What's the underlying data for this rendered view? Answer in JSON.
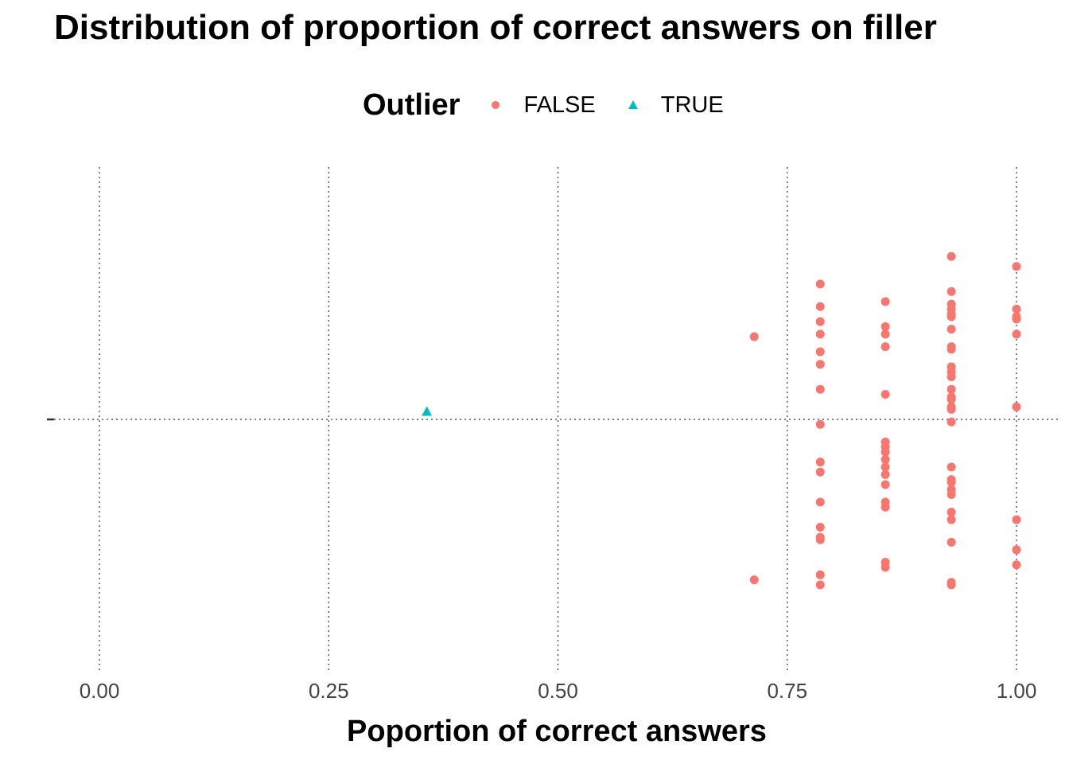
{
  "chart_data": {
    "type": "scatter",
    "title": "Distribution of proportion of correct answers on filler",
    "xlabel": "Poportion of correct answers",
    "ylabel": "",
    "xlim": [
      -0.05,
      1.05
    ],
    "x_ticks": [
      "0.00",
      "0.25",
      "0.50",
      "0.75",
      "1.00"
    ],
    "x_tick_values": [
      0,
      0.25,
      0.5,
      0.75,
      1.0
    ],
    "grid": "dotted",
    "legend": {
      "title": "Outlier",
      "placement": "top",
      "entries": [
        {
          "label": "FALSE",
          "shape": "circle",
          "color": "#F8766D"
        },
        {
          "label": "TRUE",
          "shape": "triangle",
          "color": "#00BFC4"
        }
      ]
    },
    "jitter_range": [
      -1,
      1
    ],
    "series": [
      {
        "name": "FALSE",
        "color": "#F8766D",
        "shape": "circle",
        "points": [
          {
            "x": 0.714,
            "y": 0.33
          },
          {
            "x": 0.714,
            "y": -0.64
          },
          {
            "x": 0.786,
            "y": 0.54
          },
          {
            "x": 0.786,
            "y": 0.45
          },
          {
            "x": 0.786,
            "y": 0.39
          },
          {
            "x": 0.786,
            "y": 0.34
          },
          {
            "x": 0.786,
            "y": 0.27
          },
          {
            "x": 0.786,
            "y": 0.22
          },
          {
            "x": 0.786,
            "y": 0.12
          },
          {
            "x": 0.786,
            "y": -0.02
          },
          {
            "x": 0.786,
            "y": -0.17
          },
          {
            "x": 0.786,
            "y": -0.21
          },
          {
            "x": 0.786,
            "y": -0.33
          },
          {
            "x": 0.786,
            "y": -0.43
          },
          {
            "x": 0.786,
            "y": -0.47
          },
          {
            "x": 0.786,
            "y": -0.48
          },
          {
            "x": 0.786,
            "y": -0.62
          },
          {
            "x": 0.786,
            "y": -0.66
          },
          {
            "x": 0.857,
            "y": 0.47
          },
          {
            "x": 0.857,
            "y": 0.37
          },
          {
            "x": 0.857,
            "y": 0.34
          },
          {
            "x": 0.857,
            "y": 0.29
          },
          {
            "x": 0.857,
            "y": 0.1
          },
          {
            "x": 0.857,
            "y": -0.09
          },
          {
            "x": 0.857,
            "y": -0.11
          },
          {
            "x": 0.857,
            "y": -0.13
          },
          {
            "x": 0.857,
            "y": -0.16
          },
          {
            "x": 0.857,
            "y": -0.19
          },
          {
            "x": 0.857,
            "y": -0.22
          },
          {
            "x": 0.857,
            "y": -0.26
          },
          {
            "x": 0.857,
            "y": -0.33
          },
          {
            "x": 0.857,
            "y": -0.35
          },
          {
            "x": 0.857,
            "y": -0.57
          },
          {
            "x": 0.857,
            "y": -0.59
          },
          {
            "x": 0.929,
            "y": 0.65
          },
          {
            "x": 0.929,
            "y": 0.51
          },
          {
            "x": 0.929,
            "y": 0.46
          },
          {
            "x": 0.929,
            "y": 0.44
          },
          {
            "x": 0.929,
            "y": 0.42
          },
          {
            "x": 0.929,
            "y": 0.41
          },
          {
            "x": 0.929,
            "y": 0.36
          },
          {
            "x": 0.929,
            "y": 0.29
          },
          {
            "x": 0.929,
            "y": 0.28
          },
          {
            "x": 0.929,
            "y": 0.21
          },
          {
            "x": 0.929,
            "y": 0.19
          },
          {
            "x": 0.929,
            "y": 0.17
          },
          {
            "x": 0.929,
            "y": 0.12
          },
          {
            "x": 0.929,
            "y": 0.09
          },
          {
            "x": 0.929,
            "y": 0.08
          },
          {
            "x": 0.929,
            "y": 0.05
          },
          {
            "x": 0.929,
            "y": 0.04
          },
          {
            "x": 0.929,
            "y": -0.01
          },
          {
            "x": 0.929,
            "y": -0.19
          },
          {
            "x": 0.929,
            "y": -0.24
          },
          {
            "x": 0.929,
            "y": -0.25
          },
          {
            "x": 0.929,
            "y": -0.28
          },
          {
            "x": 0.929,
            "y": -0.3
          },
          {
            "x": 0.929,
            "y": -0.37
          },
          {
            "x": 0.929,
            "y": -0.4
          },
          {
            "x": 0.929,
            "y": -0.49
          },
          {
            "x": 0.929,
            "y": -0.65
          },
          {
            "x": 0.929,
            "y": -0.66
          },
          {
            "x": 1.0,
            "y": 0.61
          },
          {
            "x": 1.0,
            "y": 0.44
          },
          {
            "x": 1.0,
            "y": 0.41
          },
          {
            "x": 1.0,
            "y": 0.4
          },
          {
            "x": 1.0,
            "y": 0.34
          },
          {
            "x": 1.0,
            "y": 0.05
          },
          {
            "x": 1.0,
            "y": -0.4
          },
          {
            "x": 1.0,
            "y": -0.52
          },
          {
            "x": 1.0,
            "y": -0.58
          }
        ]
      },
      {
        "name": "TRUE",
        "color": "#00BFC4",
        "shape": "triangle",
        "points": [
          {
            "x": 0.357,
            "y": 0.03
          }
        ]
      }
    ]
  }
}
